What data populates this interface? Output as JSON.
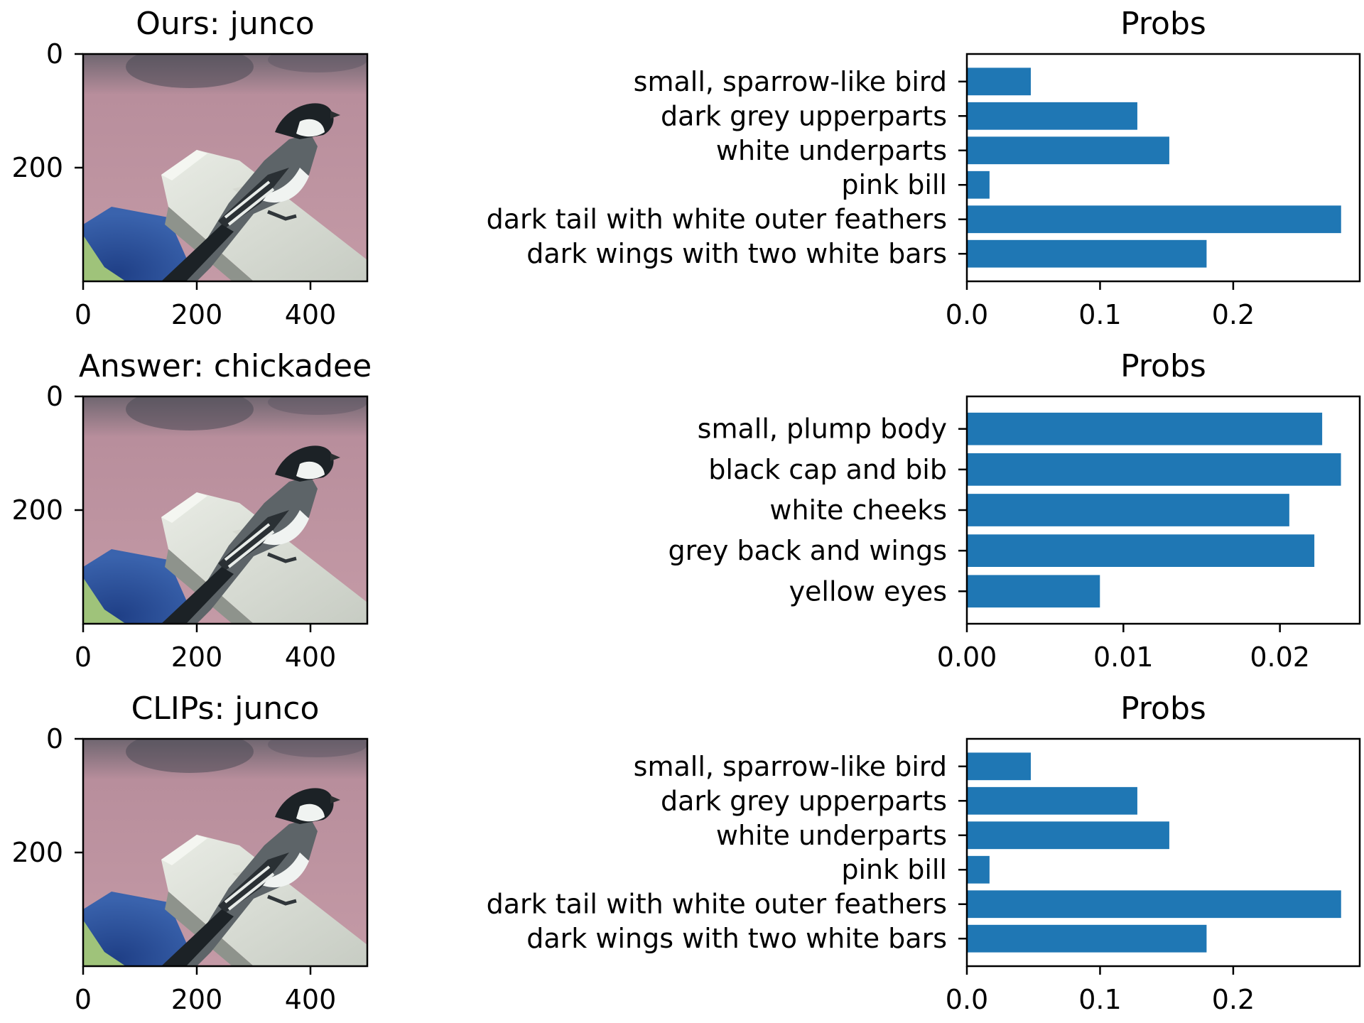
{
  "colors": {
    "bar": "#1f77b4",
    "sky": "#b88e9c",
    "sky_dark": "#4d4a56",
    "rail": "#dcdfd6",
    "rail_shadow": "#8e938c",
    "bird_back": "#5d6468",
    "bird_dark": "#1c2226",
    "bird_white": "#f0f3f1",
    "blue_object": "#2f55a3",
    "leaf": "#9fc37a"
  },
  "rows": [
    {
      "image_panel": {
        "title": "Ours: junco",
        "image": "chickadee-photo",
        "x_ticks": [
          "0",
          "200",
          "400"
        ],
        "y_ticks": [
          "0",
          "200"
        ]
      },
      "chart_data": {
        "type": "bar",
        "orientation": "horizontal",
        "title": "Probs",
        "categories": [
          "small, sparrow-like bird",
          "dark grey upperparts",
          "white underparts",
          "pink bill",
          "dark tail with white outer feathers",
          "dark wings with two white bars"
        ],
        "values": [
          0.048,
          0.128,
          0.152,
          0.017,
          0.281,
          0.18
        ],
        "xlim": [
          0,
          0.295
        ],
        "x_ticks": [
          0.0,
          0.1,
          0.2
        ],
        "x_tick_labels": [
          "0.0",
          "0.1",
          "0.2"
        ],
        "xlabel": "",
        "ylabel": ""
      }
    },
    {
      "image_panel": {
        "title": "Answer: chickadee",
        "image": "chickadee-photo",
        "x_ticks": [
          "0",
          "200",
          "400"
        ],
        "y_ticks": [
          "0",
          "200"
        ]
      },
      "chart_data": {
        "type": "bar",
        "orientation": "horizontal",
        "title": "Probs",
        "categories": [
          "small, plump body",
          "black cap and bib",
          "white cheeks",
          "grey back and wings",
          "yellow eyes"
        ],
        "values": [
          0.0227,
          0.0239,
          0.0206,
          0.0222,
          0.0085
        ],
        "xlim": [
          0,
          0.0251
        ],
        "x_ticks": [
          0.0,
          0.01,
          0.02
        ],
        "x_tick_labels": [
          "0.00",
          "0.01",
          "0.02"
        ],
        "xlabel": "",
        "ylabel": ""
      }
    },
    {
      "image_panel": {
        "title": "CLIPs: junco",
        "image": "chickadee-photo",
        "x_ticks": [
          "0",
          "200",
          "400"
        ],
        "y_ticks": [
          "0",
          "200"
        ]
      },
      "chart_data": {
        "type": "bar",
        "orientation": "horizontal",
        "title": "Probs",
        "categories": [
          "small, sparrow-like bird",
          "dark grey upperparts",
          "white underparts",
          "pink bill",
          "dark tail with white outer feathers",
          "dark wings with two white bars"
        ],
        "values": [
          0.048,
          0.128,
          0.152,
          0.017,
          0.281,
          0.18
        ],
        "xlim": [
          0,
          0.295
        ],
        "x_ticks": [
          0.0,
          0.1,
          0.2
        ],
        "x_tick_labels": [
          "0.0",
          "0.1",
          "0.2"
        ],
        "xlabel": "",
        "ylabel": ""
      }
    }
  ]
}
